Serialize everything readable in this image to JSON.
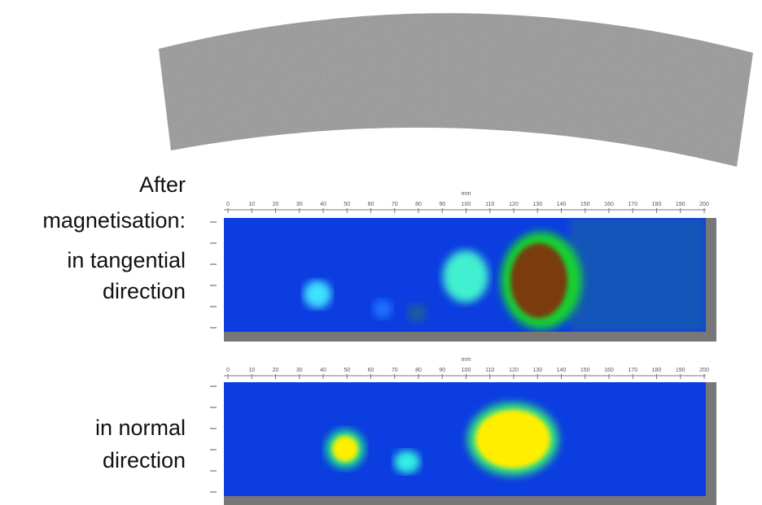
{
  "labels": {
    "after": "After",
    "magnetisation": "magnetisation:",
    "tangential_1": "in tangential",
    "tangential_2": "direction",
    "normal_1": "in normal",
    "normal_2": "direction"
  },
  "plots": [
    {
      "unit": "mm",
      "ticks": [
        "0",
        "10",
        "20",
        "30",
        "40",
        "50",
        "60",
        "70",
        "80",
        "90",
        "100",
        "110",
        "120",
        "130",
        "140",
        "150",
        "160",
        "170",
        "180",
        "190",
        "200"
      ]
    },
    {
      "unit": "mm",
      "ticks": [
        "0",
        "10",
        "20",
        "30",
        "40",
        "50",
        "60",
        "70",
        "80",
        "90",
        "100",
        "110",
        "120",
        "130",
        "140",
        "150",
        "160",
        "170",
        "180",
        "190",
        "200"
      ]
    }
  ]
}
